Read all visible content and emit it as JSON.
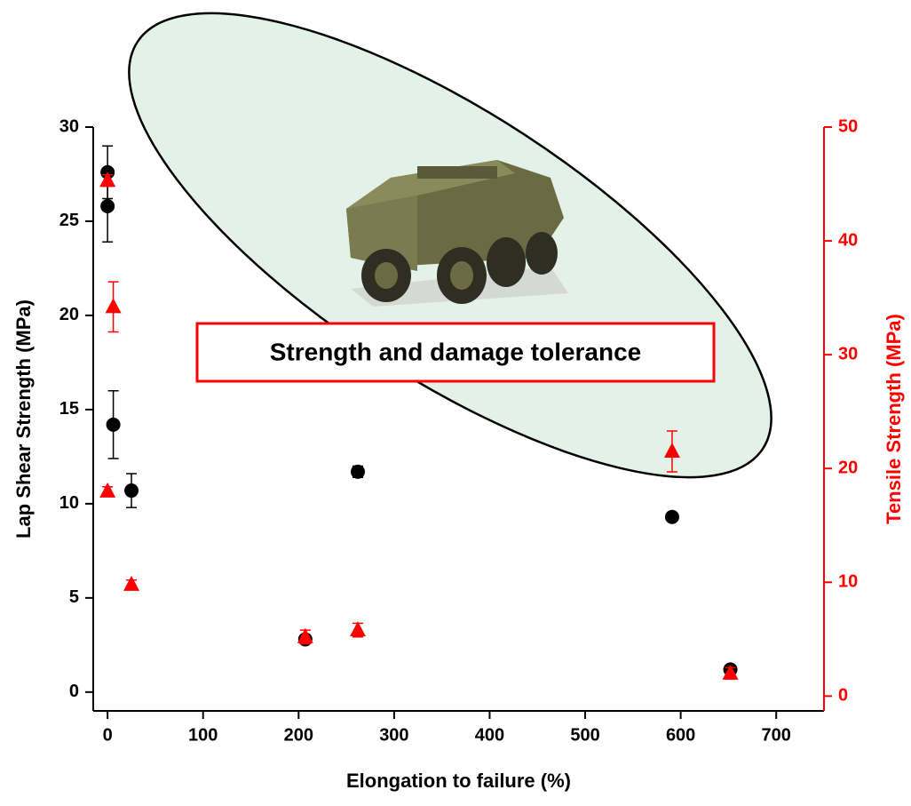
{
  "chart_data": {
    "type": "scatter",
    "x_label": "Elongation to failure (%)",
    "y_label": "Lap Shear Strength (MPa)",
    "y2_label": "Tensile Strength (MPa)",
    "annotation": "Strength and damage tolerance",
    "xlim": [
      -15,
      750
    ],
    "xticks": [
      0,
      100,
      200,
      300,
      400,
      500,
      600,
      700
    ],
    "ylim": [
      -1,
      30
    ],
    "yticks": [
      0,
      5,
      10,
      15,
      20,
      25,
      30
    ],
    "y2lim": [
      -1.3,
      50
    ],
    "y2ticks": [
      0,
      10,
      20,
      30,
      40,
      50
    ],
    "y2_color": "#ff0000",
    "series": [
      {
        "color": "#000000",
        "marker": "circle",
        "x": [
          0,
          0,
          6,
          25,
          207,
          262,
          591,
          652
        ],
        "values": [
          27.6,
          25.8,
          14.2,
          10.7,
          2.8,
          11.7,
          9.3,
          1.2
        ],
        "errors": [
          1.4,
          1.9,
          1.8,
          0.9,
          0.1,
          0.3,
          0.2,
          0.1
        ]
      },
      {
        "color": "#ff0000",
        "marker": "triangle",
        "axis": "y2",
        "x": [
          0,
          6,
          0,
          25,
          207,
          262,
          591,
          652
        ],
        "values": [
          45.3,
          34.2,
          18.0,
          9.8,
          5.2,
          5.8,
          21.5,
          2.0
        ],
        "errors": [
          0.5,
          2.2,
          0.4,
          0.4,
          0.6,
          0.6,
          1.8,
          0.5
        ]
      }
    ]
  }
}
